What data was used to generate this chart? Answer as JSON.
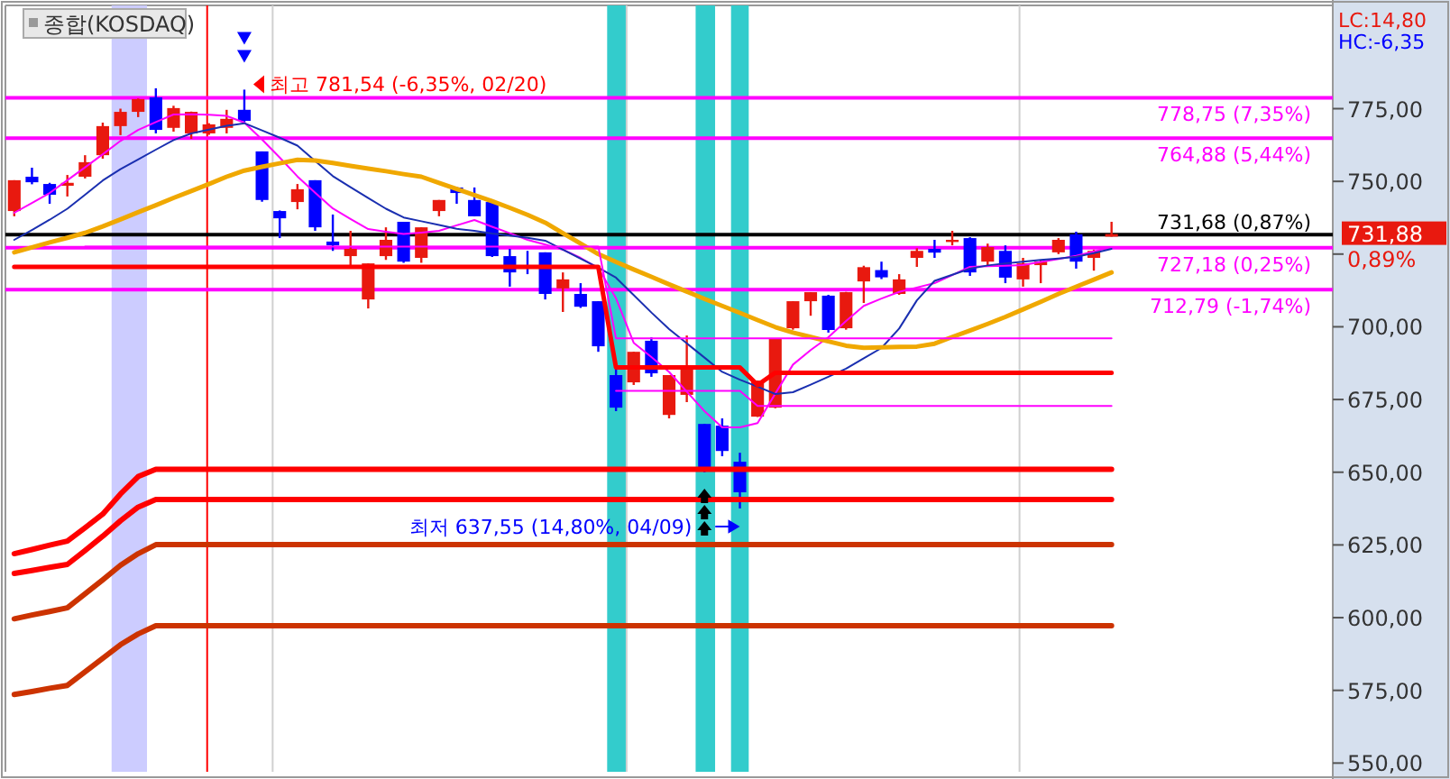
{
  "chart_data": {
    "type": "candlestick",
    "title": "종합(KOSDAQ)",
    "categories": [
      null,
      null,
      null,
      null,
      null,
      null,
      null,
      null,
      null,
      null,
      null,
      null,
      null,
      null,
      null,
      null,
      null,
      null,
      null,
      null,
      null,
      null,
      null,
      null,
      null,
      null,
      null,
      null,
      null,
      null,
      null,
      null,
      null,
      null,
      null,
      null,
      null,
      null,
      null,
      null,
      null,
      null,
      null,
      null,
      null,
      null,
      null,
      null,
      null,
      null,
      null,
      null,
      null,
      null,
      null,
      null,
      null,
      null,
      null,
      null,
      null,
      null,
      null,
      null,
      null,
      null,
      null,
      null,
      null,
      null,
      null,
      null,
      null,
      null,
      null
    ],
    "ohlc": [
      [
        739.8,
        750.4,
        738.0,
        750.4
      ],
      [
        751.6,
        754.7,
        749.0,
        749.7
      ],
      [
        749.1,
        749.5,
        742.3,
        745.4
      ],
      [
        748.5,
        752.2,
        744.8,
        749.5
      ],
      [
        751.6,
        759.0,
        751.0,
        756.6
      ],
      [
        759.0,
        770.2,
        757.8,
        769.0
      ],
      [
        769.0,
        775.0,
        765.9,
        773.9
      ],
      [
        773.9,
        778.5,
        772.1,
        778.3
      ],
      [
        778.9,
        782.0,
        766.5,
        767.7
      ],
      [
        768.4,
        776.0,
        767.1,
        775.2
      ],
      [
        766.5,
        774.0,
        764.6,
        773.9
      ],
      [
        766.5,
        770.0,
        766.0,
        769.6
      ],
      [
        768.4,
        774.6,
        766.5,
        771.5
      ],
      [
        774.6,
        781.54,
        770.0,
        770.8
      ],
      [
        760.3,
        760.3,
        743.0,
        743.6
      ],
      [
        739.8,
        740.0,
        730.5,
        737.3
      ],
      [
        742.9,
        749.1,
        740.4,
        747.3
      ],
      [
        750.4,
        750.4,
        733.0,
        734.2
      ],
      [
        729.3,
        738.6,
        726.1,
        728.0
      ],
      [
        724.3,
        733.0,
        720.6,
        726.8
      ],
      [
        709.4,
        721.8,
        706.3,
        721.8
      ],
      [
        724.3,
        734.2,
        723.0,
        729.9
      ],
      [
        736.1,
        736.1,
        722.0,
        722.4
      ],
      [
        723.7,
        734.2,
        722.0,
        734.2
      ],
      [
        739.8,
        743.6,
        738.0,
        743.6
      ],
      [
        747.9,
        748.0,
        742.3,
        746.0
      ],
      [
        743.6,
        747.9,
        738.0,
        738.0
      ],
      [
        742.9,
        742.9,
        724.0,
        724.3
      ],
      [
        724.3,
        726.8,
        713.8,
        718.7
      ],
      [
        721.2,
        726.1,
        718.1,
        720.0
      ],
      [
        725.6,
        725.6,
        709.4,
        711.3
      ],
      [
        713.2,
        718.7,
        705.1,
        716.3
      ],
      [
        711.3,
        715.0,
        706.5,
        706.9
      ],
      [
        708.8,
        708.8,
        691.4,
        693.3
      ],
      [
        683.4,
        685.9,
        671.0,
        672.2
      ],
      [
        680.9,
        691.4,
        680.0,
        691.4
      ],
      [
        695.2,
        696.4,
        682.8,
        684.0
      ],
      [
        669.7,
        683.4,
        668.5,
        683.4
      ],
      [
        676.6,
        697.0,
        674.1,
        686.5
      ],
      [
        666.6,
        666.6,
        650.0,
        650.5
      ],
      [
        666.0,
        668.5,
        655.5,
        657.3
      ],
      [
        653.6,
        656.7,
        637.55,
        643.1
      ],
      [
        669.1,
        681.5,
        669.0,
        681.5
      ],
      [
        672.2,
        695.8,
        672.0,
        695.8
      ],
      [
        699.5,
        708.8,
        699.0,
        708.8
      ],
      [
        708.8,
        711.9,
        703.8,
        711.9
      ],
      [
        710.7,
        711.0,
        698.0,
        698.9
      ],
      [
        699.5,
        712.0,
        699.0,
        711.9
      ],
      [
        715.6,
        721.0,
        708.2,
        720.5
      ],
      [
        719.5,
        722.4,
        716.4,
        717.0
      ],
      [
        711.3,
        718.1,
        711.0,
        716.3
      ],
      [
        723.7,
        727.0,
        720.6,
        726.1
      ],
      [
        726.8,
        729.9,
        723.7,
        725.5
      ],
      [
        729.6,
        733.0,
        728.0,
        729.9
      ],
      [
        730.5,
        730.8,
        717.5,
        718.7
      ],
      [
        722.4,
        728.6,
        720.6,
        727.4
      ],
      [
        726.1,
        728.0,
        715.0,
        716.9
      ],
      [
        716.3,
        723.7,
        713.8,
        721.8
      ],
      [
        721.2,
        723.0,
        715.0,
        722.4
      ],
      [
        725.6,
        730.5,
        725.0,
        729.9
      ],
      [
        731.8,
        732.7,
        720.0,
        722.4
      ],
      [
        723.7,
        726.5,
        719.3,
        726.1
      ],
      [
        731.0,
        736.1,
        731.0,
        731.88
      ],
      null,
      null,
      null,
      null,
      null,
      null,
      null,
      null,
      null,
      null,
      null,
      null
    ],
    "colors": [
      "#e8190f",
      "#0000ff",
      "#0000ff",
      "#e8190f",
      "#e8190f",
      "#e8190f",
      "#e8190f",
      "#e8190f",
      "#0000ff",
      "#e8190f",
      "#e8190f",
      "#e8190f",
      "#e8190f",
      "#0000ff",
      "#0000ff",
      "#0000ff",
      "#e8190f",
      "#0000ff",
      "#0000ff",
      "#e8190f",
      "#e8190f",
      "#e8190f",
      "#0000ff",
      "#e8190f",
      "#e8190f",
      "#0000ff",
      "#0000ff",
      "#0000ff",
      "#0000ff",
      "#0000ff",
      "#0000ff",
      "#e8190f",
      "#0000ff",
      "#0000ff",
      "#0000ff",
      "#e8190f",
      "#0000ff",
      "#e8190f",
      "#e8190f",
      "#0000ff",
      "#0000ff",
      "#0000ff",
      "#e8190f",
      "#e8190f",
      "#e8190f",
      "#e8190f",
      "#0000ff",
      "#e8190f",
      "#e8190f",
      "#0000ff",
      "#e8190f",
      "#e8190f",
      "#0000ff",
      "#e8190f",
      "#0000ff",
      "#e8190f",
      "#0000ff",
      "#e8190f",
      "#e8190f",
      "#e8190f",
      "#0000ff",
      "#e8190f",
      "#e8190f",
      null,
      null,
      null,
      null,
      null,
      null,
      null,
      null,
      null,
      null,
      null,
      null
    ],
    "series": [
      {
        "type": "line",
        "color": "#ff00ff",
        "values": [
          739.2,
          742.6,
          746.0,
          750.4,
          754.8,
          759.3,
          763.9,
          767.7,
          770.4,
          773.0,
          773.1,
          772.9,
          772.5,
          770.2,
          764.4,
          758.2,
          751.7,
          746.1,
          740.7,
          737.1,
          733.6,
          732.7,
          731.9,
          732.4,
          733.0,
          734.9,
          736.7,
          734.4,
          732.2,
          729.9,
          728.3,
          726.5,
          723.7,
          720.2,
          709.8,
          694.5,
          689.6,
          684.5,
          677.7,
          671.0,
          665.4,
          665.4,
          666.9,
          677.0,
          687.0,
          692.0,
          696.4,
          702.0,
          707.2,
          709.7,
          712.0,
          713.5,
          715.0,
          717.8,
          720.6,
          720.8,
          721.0,
          721.2,
          722.3,
          723.3,
          724.4,
          725.9,
          727.4,
          null,
          null,
          null,
          null,
          null,
          null,
          null,
          null,
          null,
          null,
          null,
          null
        ]
      },
      {
        "type": "line",
        "color": "#1a2fb0",
        "values": [
          729.9,
          733.3,
          736.8,
          740.6,
          745.4,
          750.3,
          754.2,
          757.5,
          760.9,
          764.2,
          766.5,
          767.8,
          769.1,
          770.0,
          767.5,
          765.0,
          762.3,
          757.0,
          751.8,
          748.0,
          744.3,
          740.6,
          737.6,
          736.3,
          735.0,
          733.7,
          733.0,
          732.1,
          731.4,
          730.6,
          729.6,
          726.5,
          723.4,
          720.3,
          716.9,
          710.9,
          704.9,
          699.2,
          694.3,
          689.4,
          684.5,
          681.8,
          679.4,
          676.9,
          677.5,
          680.1,
          682.8,
          685.6,
          689.2,
          692.7,
          699.4,
          709.1,
          715.8,
          717.9,
          720.0,
          721.1,
          721.8,
          722.4,
          723.0,
          723.5,
          724.1,
          725.3,
          726.8,
          null,
          null,
          null,
          null,
          null,
          null,
          null,
          null,
          null,
          null,
          null,
          null
        ]
      },
      {
        "type": "line",
        "color": "#f0a800",
        "values": [
          725.6,
          727.3,
          729.0,
          730.6,
          732.3,
          734.5,
          736.9,
          739.4,
          741.8,
          744.3,
          746.7,
          749.1,
          751.6,
          753.7,
          755.0,
          756.2,
          757.4,
          757.2,
          756.3,
          755.3,
          754.4,
          753.5,
          752.5,
          751.6,
          749.5,
          747.4,
          745.3,
          743.2,
          740.9,
          738.5,
          735.8,
          732.2,
          728.6,
          725.0,
          722.3,
          719.7,
          717.2,
          714.6,
          712.1,
          709.6,
          707.2,
          704.8,
          702.3,
          699.9,
          698.0,
          696.5,
          695.0,
          693.5,
          692.8,
          692.9,
          693.1,
          693.2,
          694.2,
          696.5,
          698.7,
          701.0,
          703.4,
          706.0,
          708.6,
          711.3,
          713.8,
          716.2,
          718.7,
          null,
          null,
          null,
          null,
          null,
          null,
          null,
          null,
          null,
          null,
          null,
          null
        ]
      },
      {
        "type": "line",
        "color": "#ff0000",
        "values": [
          720.6,
          720.6,
          720.6,
          720.6,
          720.6,
          720.6,
          720.6,
          720.6,
          720.6,
          720.6,
          720.6,
          720.6,
          720.6,
          720.6,
          720.6,
          720.6,
          720.6,
          720.6,
          720.6,
          720.6,
          720.6,
          720.6,
          720.6,
          720.6,
          720.6,
          720.6,
          720.6,
          720.6,
          720.6,
          720.6,
          720.6,
          720.6,
          720.6,
          720.6,
          686.0,
          686.0,
          686.0,
          686.0,
          686.0,
          686.0,
          686.0,
          686.0,
          680.0,
          684.2,
          684.2,
          684.2,
          684.2,
          684.2,
          684.2,
          684.2,
          684.2,
          684.2,
          684.2,
          684.2,
          684.2,
          684.2,
          684.2,
          684.2,
          684.2,
          684.2,
          684.2,
          684.2,
          684.2,
          null,
          null,
          null,
          null,
          null,
          null,
          null,
          null,
          null,
          null,
          null,
          null
        ]
      },
      {
        "type": "line",
        "color": "#ff00ff",
        "values": [
          null,
          null,
          null,
          null,
          727.6,
          727.6,
          727.6,
          727.6,
          727.6,
          727.6,
          727.6,
          727.6,
          727.6,
          727.6,
          727.6,
          727.6,
          727.6,
          727.6,
          727.6,
          727.6,
          727.6,
          727.6,
          727.6,
          727.6,
          727.6,
          727.6,
          727.6,
          727.6,
          727.6,
          727.6,
          727.6,
          727.6,
          727.6,
          727.6,
          696.0,
          696.0,
          696.0,
          696.0,
          696.0,
          696.0,
          696.0,
          696.0,
          696.0,
          696.0,
          696.0,
          696.0,
          696.0,
          696.0,
          696.0,
          696.0,
          696.0,
          696.0,
          696.0,
          696.0,
          696.0,
          696.0,
          696.0,
          696.0,
          696.0,
          696.0,
          696.0,
          696.0,
          696.0,
          null,
          null,
          null,
          null,
          null,
          null,
          null,
          null,
          null,
          null,
          null,
          null
        ]
      },
      {
        "type": "line",
        "color": "#ff00ff",
        "values": [
          null,
          null,
          null,
          null,
          null,
          null,
          null,
          null,
          null,
          null,
          null,
          null,
          null,
          null,
          null,
          null,
          null,
          null,
          null,
          null,
          null,
          null,
          null,
          null,
          null,
          null,
          null,
          null,
          null,
          null,
          null,
          null,
          null,
          null,
          678.0,
          678.0,
          678.0,
          678.0,
          678.0,
          678.0,
          678.0,
          678.0,
          672.8,
          672.8,
          672.8,
          672.8,
          672.8,
          672.8,
          672.8,
          672.8,
          672.8,
          672.8,
          672.8,
          672.8,
          672.8,
          672.8,
          672.8,
          672.8,
          672.8,
          672.8,
          672.8,
          672.8,
          672.8,
          null,
          null,
          null,
          null,
          null,
          null,
          null,
          null,
          null,
          null,
          null,
          null
        ]
      },
      {
        "type": "line",
        "color": "#ff0000",
        "values": [
          622.0,
          623.4,
          624.9,
          626.3,
          630.9,
          635.6,
          642.5,
          648.5,
          651.0,
          651.0,
          651.0,
          651.0,
          651.0,
          651.0,
          651.0,
          651.0,
          651.0,
          651.0,
          651.0,
          651.0,
          651.0,
          651.0,
          651.0,
          651.0,
          651.0,
          651.0,
          651.0,
          651.0,
          651.0,
          651.0,
          651.0,
          651.0,
          651.0,
          651.0,
          651.0,
          651.0,
          651.0,
          651.0,
          651.0,
          651.0,
          651.0,
          651.0,
          651.0,
          651.0,
          651.0,
          651.0,
          651.0,
          651.0,
          651.0,
          651.0,
          651.0,
          651.0,
          651.0,
          651.0,
          651.0,
          651.0,
          651.0,
          651.0,
          651.0,
          651.0,
          651.0,
          651.0,
          651.0,
          null,
          null,
          null,
          null,
          null,
          null,
          null,
          null,
          null,
          null,
          null,
          null
        ]
      },
      {
        "type": "line",
        "color": "#ff0000",
        "values": [
          615.2,
          616.2,
          617.3,
          618.3,
          623.1,
          628.0,
          633.3,
          638.0,
          640.6,
          640.6,
          640.6,
          640.6,
          640.6,
          640.6,
          640.6,
          640.6,
          640.6,
          640.6,
          640.6,
          640.6,
          640.6,
          640.6,
          640.6,
          640.6,
          640.6,
          640.6,
          640.6,
          640.6,
          640.6,
          640.6,
          640.6,
          640.6,
          640.6,
          640.6,
          640.6,
          640.6,
          640.6,
          640.6,
          640.6,
          640.6,
          640.6,
          640.6,
          640.6,
          640.6,
          640.6,
          640.6,
          640.6,
          640.6,
          640.6,
          640.6,
          640.6,
          640.6,
          640.6,
          640.6,
          640.6,
          640.6,
          640.6,
          640.6,
          640.6,
          640.6,
          640.6,
          640.6,
          640.6,
          null,
          null,
          null,
          null,
          null,
          null,
          null,
          null,
          null,
          null,
          null,
          null
        ]
      },
      {
        "type": "line",
        "color": "#cc3300",
        "values": [
          599.6,
          600.9,
          602.1,
          603.4,
          608.2,
          613.0,
          618.0,
          622.0,
          625.1,
          625.1,
          625.1,
          625.1,
          625.1,
          625.1,
          625.1,
          625.1,
          625.1,
          625.1,
          625.1,
          625.1,
          625.1,
          625.1,
          625.1,
          625.1,
          625.1,
          625.1,
          625.1,
          625.1,
          625.1,
          625.1,
          625.1,
          625.1,
          625.1,
          625.1,
          625.1,
          625.1,
          625.1,
          625.1,
          625.1,
          625.1,
          625.1,
          625.1,
          625.1,
          625.1,
          625.1,
          625.1,
          625.1,
          625.1,
          625.1,
          625.1,
          625.1,
          625.1,
          625.1,
          625.1,
          625.1,
          625.1,
          625.1,
          625.1,
          625.1,
          625.1,
          625.1,
          625.1,
          625.1,
          null,
          null,
          null,
          null,
          null,
          null,
          null,
          null,
          null,
          null,
          null,
          null
        ]
      },
      {
        "type": "line",
        "color": "#cc3300",
        "values": [
          573.6,
          574.6,
          575.7,
          576.7,
          581.4,
          586.0,
          590.7,
          594.4,
          597.2,
          597.2,
          597.2,
          597.2,
          597.2,
          597.2,
          597.2,
          597.2,
          597.2,
          597.2,
          597.2,
          597.2,
          597.2,
          597.2,
          597.2,
          597.2,
          597.2,
          597.2,
          597.2,
          597.2,
          597.2,
          597.2,
          597.2,
          597.2,
          597.2,
          597.2,
          597.2,
          597.2,
          597.2,
          597.2,
          597.2,
          597.2,
          597.2,
          597.2,
          597.2,
          597.2,
          597.2,
          597.2,
          597.2,
          597.2,
          597.2,
          597.2,
          597.2,
          597.2,
          597.2,
          597.2,
          597.2,
          597.2,
          597.2,
          597.2,
          597.2,
          597.2,
          597.2,
          597.2,
          597.2,
          null,
          null,
          null,
          null,
          null,
          null,
          null,
          null,
          null,
          null,
          null,
          null
        ]
      }
    ],
    "ylim": [
      547,
      810.5
    ],
    "yticks": [
      {
        "value": 550,
        "label": "550,00"
      },
      {
        "value": 575,
        "label": "575,00"
      },
      {
        "value": 600,
        "label": "600,00"
      },
      {
        "value": 625,
        "label": "625,00"
      },
      {
        "value": 650,
        "label": "650,00"
      },
      {
        "value": 675,
        "label": "675,00"
      },
      {
        "value": 700,
        "label": "700,00"
      },
      {
        "value": 725,
        "label": null
      },
      {
        "value": 750,
        "label": "750,00"
      },
      {
        "value": 775,
        "label": "775,00"
      }
    ],
    "tick_labels": "y",
    "ref_lines": [
      {
        "axis": "y",
        "value": 778.75,
        "label": "778,75 (7,35%)",
        "color": "#ff00ff"
      },
      {
        "axis": "y",
        "value": 764.88,
        "label": "764,88 (5,44%)",
        "color": "#ff00ff"
      },
      {
        "axis": "y",
        "value": 731.68,
        "label": "731,68 (0,87%)",
        "color": "#000000"
      },
      {
        "axis": "y",
        "value": 727.18,
        "label": "727,18 (0,25%)",
        "color": "#ff00ff"
      },
      {
        "axis": "y",
        "value": 712.79,
        "label": "712,79 (-1,74%)",
        "color": "#ff00ff"
      }
    ],
    "annotations": [
      {
        "text": "최고 781,54 (-6,35%, 02/20)",
        "y": 781.54
      },
      {
        "text": "최저 637,55 (14,80%, 04/09)",
        "y": 637.55
      },
      "LC:14,80",
      "HC:-6,35",
      "731,88",
      "0,89%"
    ]
  }
}
